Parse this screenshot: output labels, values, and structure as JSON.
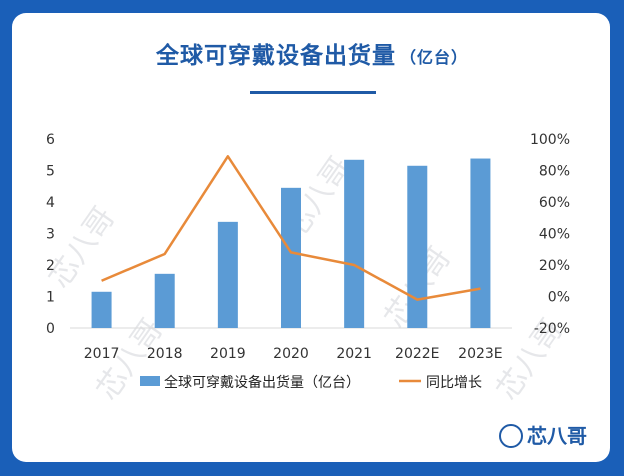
{
  "chart_data": {
    "type": "bar",
    "title": "全球可穿戴设备出货量",
    "title_unit": "（亿台）",
    "categories": [
      "2017",
      "2018",
      "2019",
      "2020",
      "2021",
      "2022E",
      "2023E"
    ],
    "series": [
      {
        "name": "全球可穿戴设备出货量（亿台）",
        "type": "bar",
        "axis": "left",
        "color": "#5b9bd5",
        "values": [
          1.15,
          1.72,
          3.37,
          4.45,
          5.34,
          5.15,
          5.38
        ]
      },
      {
        "name": "同比增长",
        "type": "line",
        "axis": "right",
        "color": "#e88a3a",
        "values": [
          0.1,
          0.27,
          0.89,
          0.28,
          0.2,
          -0.02,
          0.05
        ]
      }
    ],
    "y_left": {
      "ylim": [
        0,
        6
      ],
      "ticks": [
        0,
        1,
        2,
        3,
        4,
        5,
        6
      ],
      "labels": [
        "0",
        "1",
        "2",
        "3",
        "4",
        "5",
        "6"
      ]
    },
    "y_right": {
      "ylim": [
        -0.2,
        1.0
      ],
      "ticks": [
        -0.2,
        0,
        0.2,
        0.4,
        0.6,
        0.8,
        1.0
      ],
      "labels": [
        "-20%",
        "0%",
        "20%",
        "40%",
        "60%",
        "80%",
        "100%"
      ]
    },
    "grid": false,
    "legend_position": "bottom"
  },
  "watermark": {
    "text": "芯八哥"
  },
  "logo": {
    "text": "芯八哥",
    "icon": "bird-icon"
  }
}
